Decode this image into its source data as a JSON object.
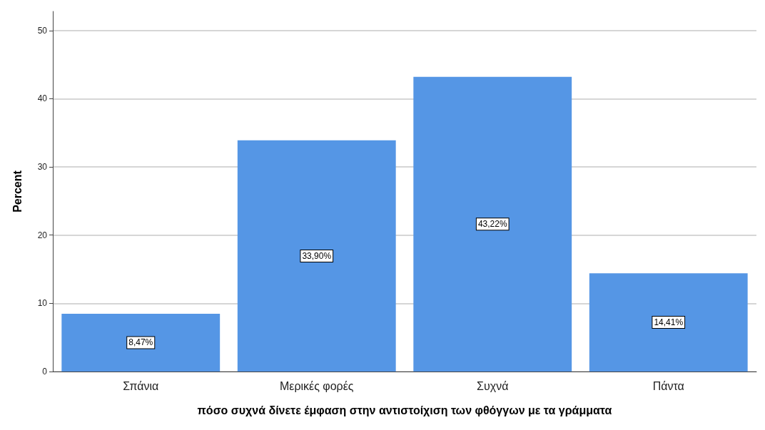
{
  "chart_data": {
    "type": "bar",
    "xlabel": "πόσο συχνά δίνετε έμφαση στην αντιστοίχιση των φθόγγων με τα γράμματα",
    "ylabel": "Percent",
    "categories": [
      "Σπάνια",
      "Μερικές φορές",
      "Συχνά",
      "Πάντα"
    ],
    "values": [
      8.47,
      33.9,
      43.22,
      14.41
    ],
    "value_labels": [
      "8,47%",
      "33,90%",
      "43,22%",
      "14,41%"
    ],
    "color": "#5596e5",
    "ylim": [
      0,
      52.8
    ],
    "yticks": [
      0,
      10,
      20,
      30,
      40,
      50
    ],
    "grid": "y"
  }
}
